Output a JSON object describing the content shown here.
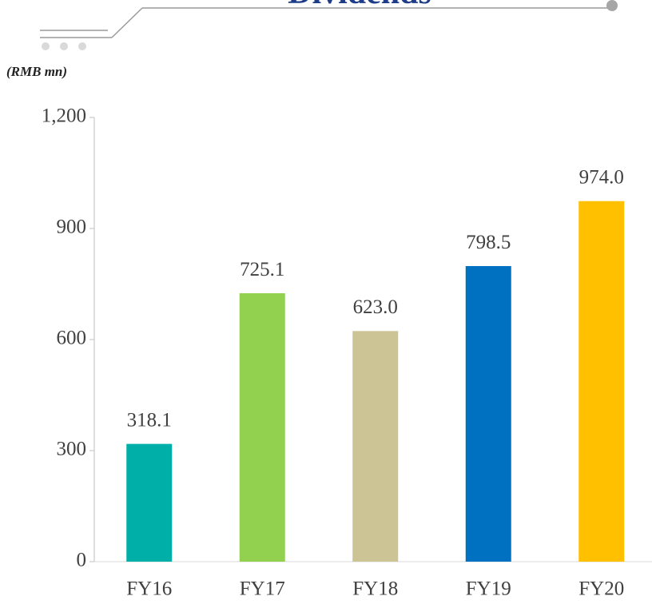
{
  "chart_data": {
    "type": "bar",
    "title": "Dividends",
    "unit_label": "(RMB mn)",
    "categories": [
      "FY16",
      "FY17",
      "FY18",
      "FY19",
      "FY20"
    ],
    "values": [
      318.1,
      725.1,
      623.0,
      798.5,
      974.0
    ],
    "value_labels": [
      "318.1",
      "725.1",
      "623.0",
      "798.5",
      "974.0"
    ],
    "colors": [
      "#00b0a8",
      "#92d050",
      "#ccc494",
      "#0070c0",
      "#ffc000"
    ],
    "ylim": [
      0,
      1200
    ],
    "yticks": [
      0,
      300,
      600,
      900,
      {
        "value": 1200,
        "label": "1,200"
      }
    ],
    "grid": false
  }
}
